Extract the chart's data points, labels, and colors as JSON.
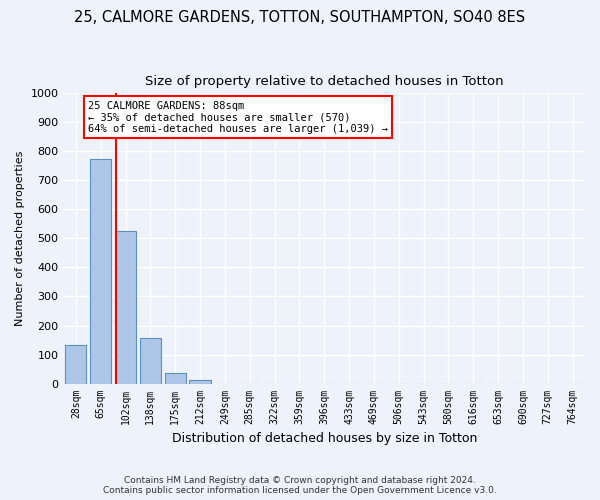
{
  "title": "25, CALMORE GARDENS, TOTTON, SOUTHAMPTON, SO40 8ES",
  "subtitle": "Size of property relative to detached houses in Totton",
  "xlabel": "Distribution of detached houses by size in Totton",
  "ylabel": "Number of detached properties",
  "bar_labels": [
    "28sqm",
    "65sqm",
    "102sqm",
    "138sqm",
    "175sqm",
    "212sqm",
    "249sqm",
    "285sqm",
    "322sqm",
    "359sqm",
    "396sqm",
    "433sqm",
    "469sqm",
    "506sqm",
    "543sqm",
    "580sqm",
    "616sqm",
    "653sqm",
    "690sqm",
    "727sqm",
    "764sqm"
  ],
  "bar_values": [
    133,
    775,
    525,
    158,
    35,
    12,
    0,
    0,
    0,
    0,
    0,
    0,
    0,
    0,
    0,
    0,
    0,
    0,
    0,
    0,
    0
  ],
  "bar_color": "#aec6e8",
  "bar_edge_color": "#5a8fc0",
  "ylim": [
    0,
    1000
  ],
  "yticks": [
    0,
    100,
    200,
    300,
    400,
    500,
    600,
    700,
    800,
    900,
    1000
  ],
  "annotation_line1": "25 CALMORE GARDENS: 88sqm",
  "annotation_line2": "← 35% of detached houses are smaller (570)",
  "annotation_line3": "64% of semi-detached houses are larger (1,039) →",
  "footer_line1": "Contains HM Land Registry data © Crown copyright and database right 2024.",
  "footer_line2": "Contains public sector information licensed under the Open Government Licence v3.0.",
  "background_color": "#eef2fa",
  "plot_bg_color": "#eef2fa",
  "grid_color": "#ffffff",
  "title_fontsize": 10.5,
  "subtitle_fontsize": 9.5,
  "ylabel_fontsize": 8,
  "xlabel_fontsize": 9
}
